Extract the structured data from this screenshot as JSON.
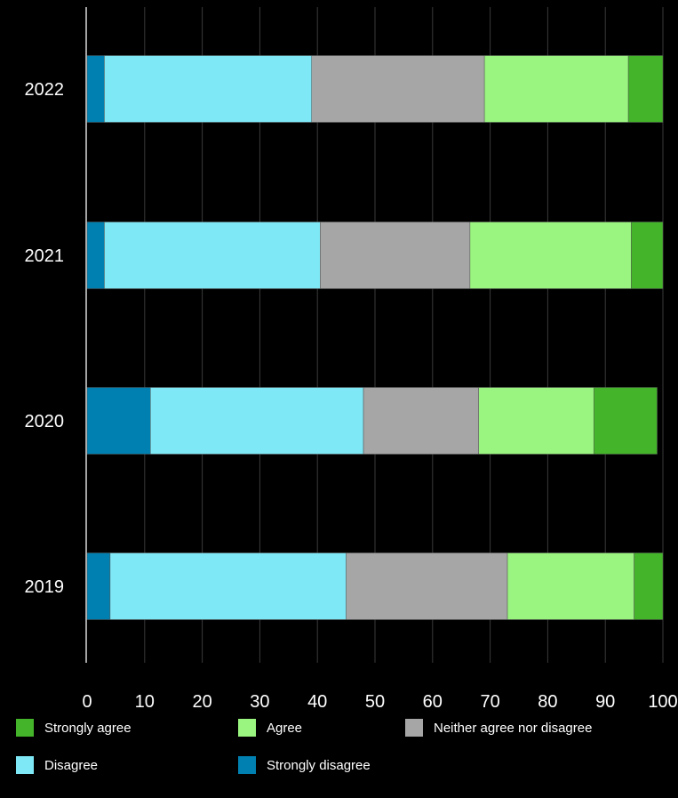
{
  "chart_data": {
    "type": "bar",
    "orientation": "horizontal",
    "stacked": true,
    "categories": [
      "2022",
      "2021",
      "2020",
      "2019"
    ],
    "series": [
      {
        "name": "Strongly disagree",
        "color": "#0080b0",
        "values": [
          3,
          3,
          11,
          4
        ]
      },
      {
        "name": "Disagree",
        "color": "#7fe8f6",
        "values": [
          36,
          37.5,
          37,
          41
        ]
      },
      {
        "name": "Neither agree nor disagree",
        "color": "#a6a6a6",
        "values": [
          30,
          26,
          20,
          28
        ]
      },
      {
        "name": "Agree",
        "color": "#99f57f",
        "values": [
          25,
          28,
          20,
          22
        ]
      },
      {
        "name": "Strongly agree",
        "color": "#44b42a",
        "values": [
          6,
          5.5,
          11,
          5
        ]
      }
    ],
    "xlim": [
      0,
      100
    ],
    "xticks": [
      0,
      10,
      20,
      30,
      40,
      50,
      60,
      70,
      80,
      90,
      100
    ],
    "grid": true,
    "legend_position": "bottom"
  },
  "legend": {
    "items": [
      {
        "label": "Strongly agree",
        "color": "#44b42a"
      },
      {
        "label": "Agree",
        "color": "#99f57f"
      },
      {
        "label": "Neither agree nor disagree",
        "color": "#a6a6a6"
      },
      {
        "label": "Disagree",
        "color": "#7fe8f6"
      },
      {
        "label": "Strongly disagree",
        "color": "#0080b0"
      }
    ]
  }
}
